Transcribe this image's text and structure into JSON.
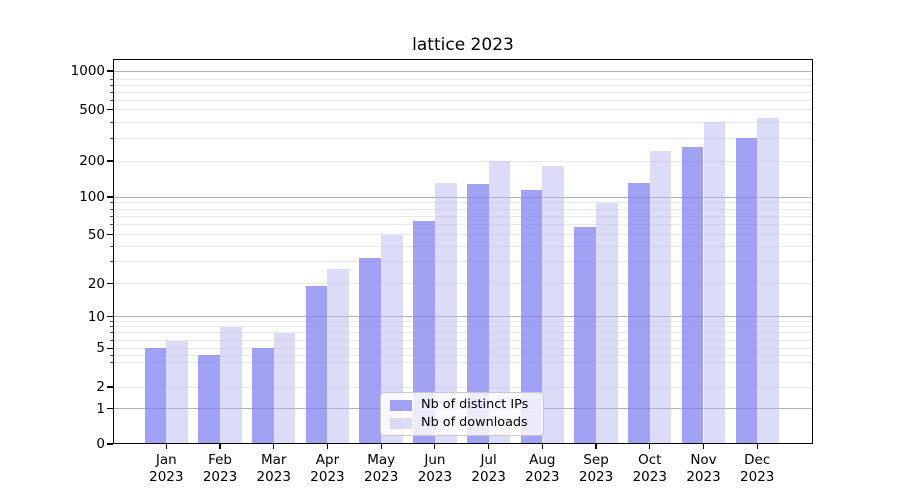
{
  "title": "lattice 2023",
  "y_axis": {
    "tick_labels": [
      "0",
      "1",
      "2",
      "5",
      "10",
      "20",
      "50",
      "100",
      "200",
      "500",
      "1000"
    ]
  },
  "x_axis": {
    "months": [
      "Jan",
      "Feb",
      "Mar",
      "Apr",
      "May",
      "Jun",
      "Jul",
      "Aug",
      "Sep",
      "Oct",
      "Nov",
      "Dec"
    ],
    "year": "2023"
  },
  "legend": {
    "items": [
      {
        "label": "Nb of distinct IPs",
        "series": "ips"
      },
      {
        "label": "Nb of downloads",
        "series": "downloads"
      }
    ]
  },
  "colors": {
    "ips_bar": "rgba(122,122,240,0.70)",
    "downloads_bar": "rgba(178,178,242,0.45)",
    "major_gridline": "#b3b3b3",
    "minor_gridline": "#e9e9e9"
  },
  "chart_data": {
    "type": "bar",
    "title": "lattice 2023",
    "categories": [
      "Jan 2023",
      "Feb 2023",
      "Mar 2023",
      "Apr 2023",
      "May 2023",
      "Jun 2023",
      "Jul 2023",
      "Aug 2023",
      "Sep 2023",
      "Oct 2023",
      "Nov 2023",
      "Dec 2023"
    ],
    "series": [
      {
        "name": "Nb of distinct IPs",
        "color": "rgba(122,122,240,0.70)",
        "values": [
          5,
          4,
          5,
          19,
          32,
          64,
          128,
          115,
          57,
          130,
          258,
          300
        ]
      },
      {
        "name": "Nb of downloads",
        "color": "rgba(178,178,242,0.45)",
        "values": [
          6,
          8,
          7,
          26,
          50,
          130,
          200,
          180,
          90,
          240,
          400,
          430
        ]
      }
    ],
    "xlabel": "",
    "ylabel": "",
    "yscale": "symlog",
    "yticks": [
      0,
      1,
      2,
      5,
      10,
      20,
      50,
      100,
      200,
      500,
      1000
    ],
    "ylim": [
      0,
      1300
    ],
    "grid": true,
    "legend_position": "lower center"
  }
}
